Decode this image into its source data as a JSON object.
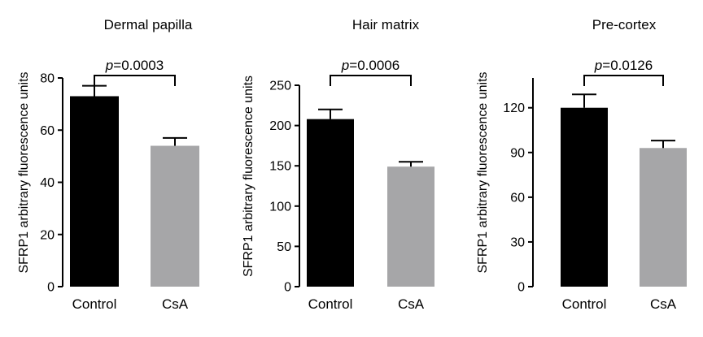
{
  "chart_data": [
    {
      "type": "bar",
      "title": "Dermal papilla",
      "ylabel": "SFRP1 arbitrary fluorescence units",
      "categories": [
        "Control",
        "CsA"
      ],
      "values": [
        73,
        54
      ],
      "errors": [
        4,
        3
      ],
      "colors": [
        "#000000",
        "#a6a6a8"
      ],
      "ylim": [
        0,
        80
      ],
      "yticks": [
        0,
        20,
        40,
        60,
        80
      ],
      "annotation": {
        "prefix": "p",
        "text": "=0.0003"
      }
    },
    {
      "type": "bar",
      "title": "Hair matrix",
      "ylabel": "SFRP1 arbitrary fluorescence units",
      "categories": [
        "Control",
        "CsA"
      ],
      "values": [
        208,
        149
      ],
      "errors": [
        12,
        6
      ],
      "colors": [
        "#000000",
        "#a6a6a8"
      ],
      "ylim": [
        0,
        250
      ],
      "yticks": [
        0,
        50,
        100,
        150,
        200,
        250
      ],
      "annotation": {
        "prefix": "p",
        "text": "=0.0006"
      }
    },
    {
      "type": "bar",
      "title": "Pre-cortex",
      "ylabel": "SFRP1 arbitrary fluorescence units",
      "categories": [
        "Control",
        "CsA"
      ],
      "values": [
        120,
        93
      ],
      "errors": [
        9,
        5
      ],
      "colors": [
        "#000000",
        "#a6a6a8"
      ],
      "ylim": [
        0,
        140
      ],
      "yticks": [
        0,
        30,
        60,
        90,
        120
      ],
      "annotation": {
        "prefix": "p",
        "text": "=0.0126"
      }
    }
  ]
}
